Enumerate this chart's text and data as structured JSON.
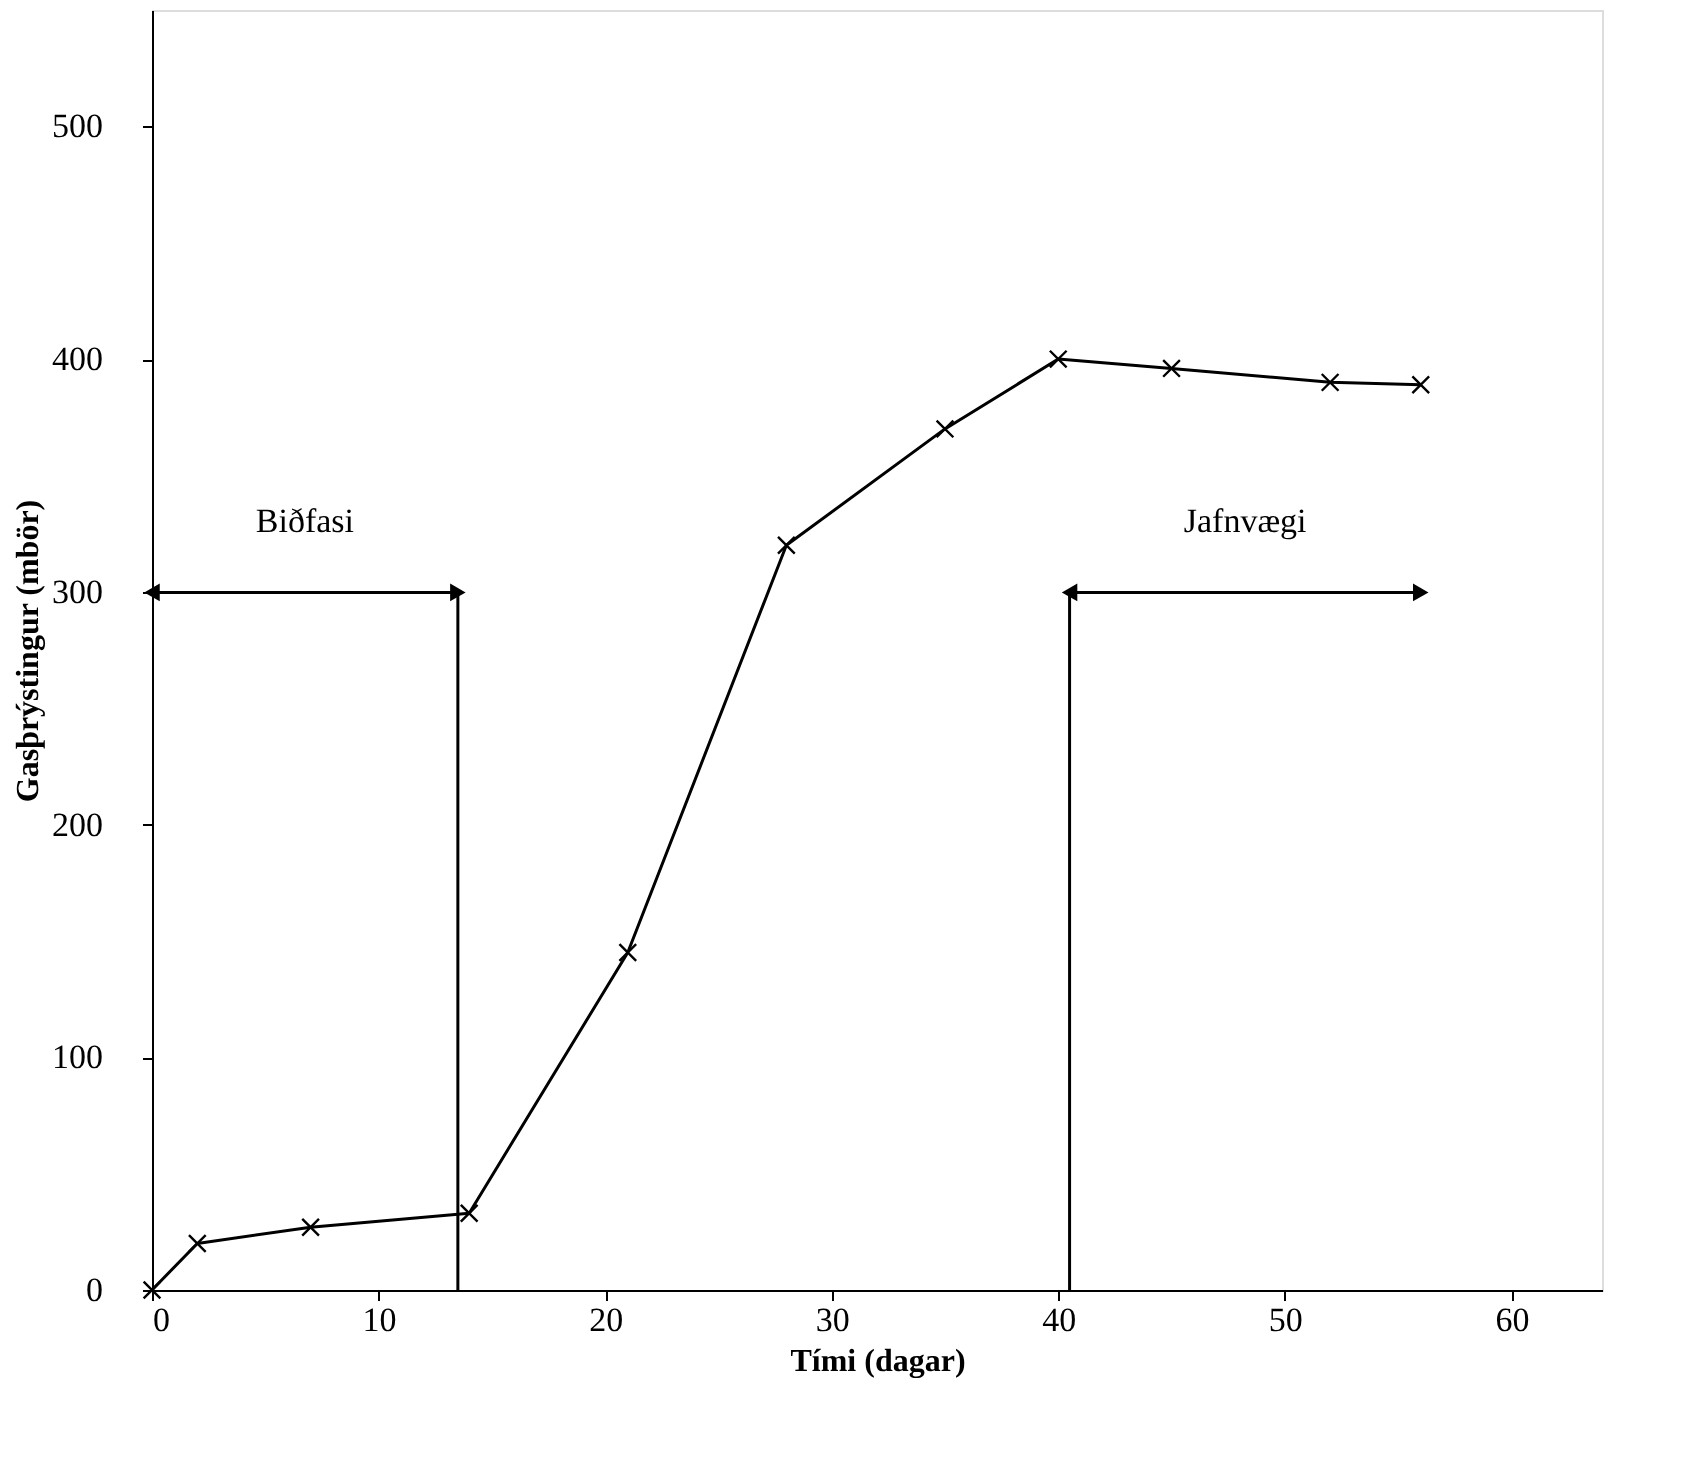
{
  "chart_data": {
    "type": "line",
    "xlabel": "Tími (dagar)",
    "ylabel": "Gasþrýstingur (mbör)",
    "x": [
      0,
      2,
      7,
      14,
      21,
      28,
      35,
      40,
      45,
      52,
      56
    ],
    "values": [
      0,
      20,
      27,
      33,
      145,
      320,
      370,
      400,
      396,
      390,
      389
    ],
    "color": "#000000",
    "marker": "cross",
    "line_style": "solid",
    "grid": false,
    "xlim": [
      0,
      64
    ],
    "ylim": [
      0,
      550
    ],
    "xticks": [
      0,
      10,
      20,
      30,
      40,
      50,
      60
    ],
    "yticks": [
      0,
      100,
      200,
      300,
      400,
      500
    ],
    "ref_lines": [
      {
        "axis": "x",
        "value": 13.5
      },
      {
        "axis": "x",
        "value": 40.5
      }
    ],
    "annotations": [
      "Biðfasi",
      "Jafnvægi"
    ]
  }
}
